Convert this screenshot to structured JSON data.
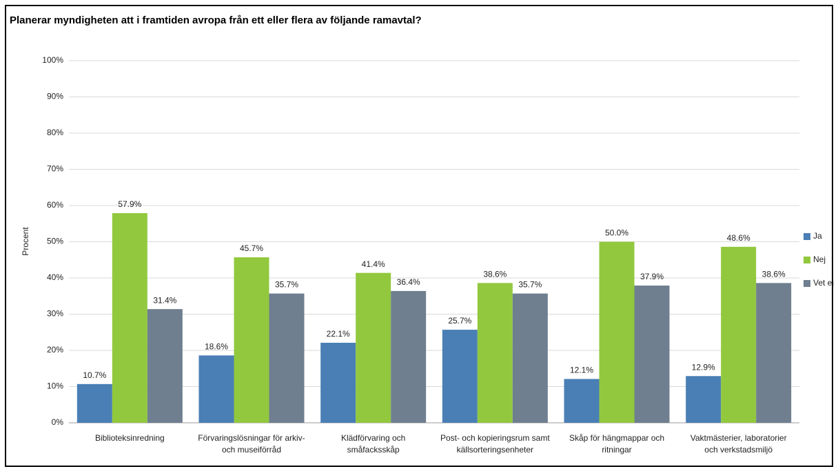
{
  "chart_data": {
    "type": "bar",
    "title": "Planerar myndigheten att i framtiden avropa från ett eller flera av följande ramavtal?",
    "y_label": "Procent",
    "categories": [
      "Biblioteksinredning",
      "Förvaringslösningar för arkiv-\noch museiförråd",
      "Klädförvaring och\nsmåfacksskåp",
      "Post- och kopieringsrum samt\nkällsorteringsenheter",
      "Skåp för hängmappar och\nritningar",
      "Vaktmästerier, laboratorier\noch verkstadsmiljö"
    ],
    "series": [
      {
        "name": "Ja",
        "color": "#4a7fb5",
        "values": [
          10.7,
          18.6,
          22.1,
          25.7,
          12.1,
          12.9
        ],
        "value_labels": [
          "10.7%",
          "18.6%",
          "22.1%",
          "25.7%",
          "12.1%",
          "12.9%"
        ]
      },
      {
        "name": "Nej",
        "color": "#92c83e",
        "values": [
          57.9,
          45.7,
          41.4,
          38.6,
          50.0,
          48.6
        ],
        "value_labels": [
          "57.9%",
          "45.7%",
          "41.4%",
          "38.6%",
          "50.0%",
          "48.6%"
        ]
      },
      {
        "name": "Vet ej",
        "color": "#6f7f8f",
        "values": [
          31.4,
          35.7,
          36.4,
          35.7,
          37.9,
          38.6
        ],
        "value_labels": [
          "31.4%",
          "35.7%",
          "36.4%",
          "35.7%",
          "37.9%",
          "38.6%"
        ]
      }
    ],
    "ylim": [
      0,
      100
    ],
    "yticks": [
      {
        "value": 0,
        "label": "0%"
      },
      {
        "value": 10,
        "label": "10%"
      },
      {
        "value": 20,
        "label": "20%"
      },
      {
        "value": 30,
        "label": "30%"
      },
      {
        "value": 40,
        "label": "40%"
      },
      {
        "value": 50,
        "label": "50%"
      },
      {
        "value": 60,
        "label": "60%"
      },
      {
        "value": 70,
        "label": "70%"
      },
      {
        "value": 80,
        "label": "80%"
      },
      {
        "value": 90,
        "label": "90%"
      },
      {
        "value": 100,
        "label": "100%"
      }
    ],
    "grid": true,
    "legend": "right"
  }
}
